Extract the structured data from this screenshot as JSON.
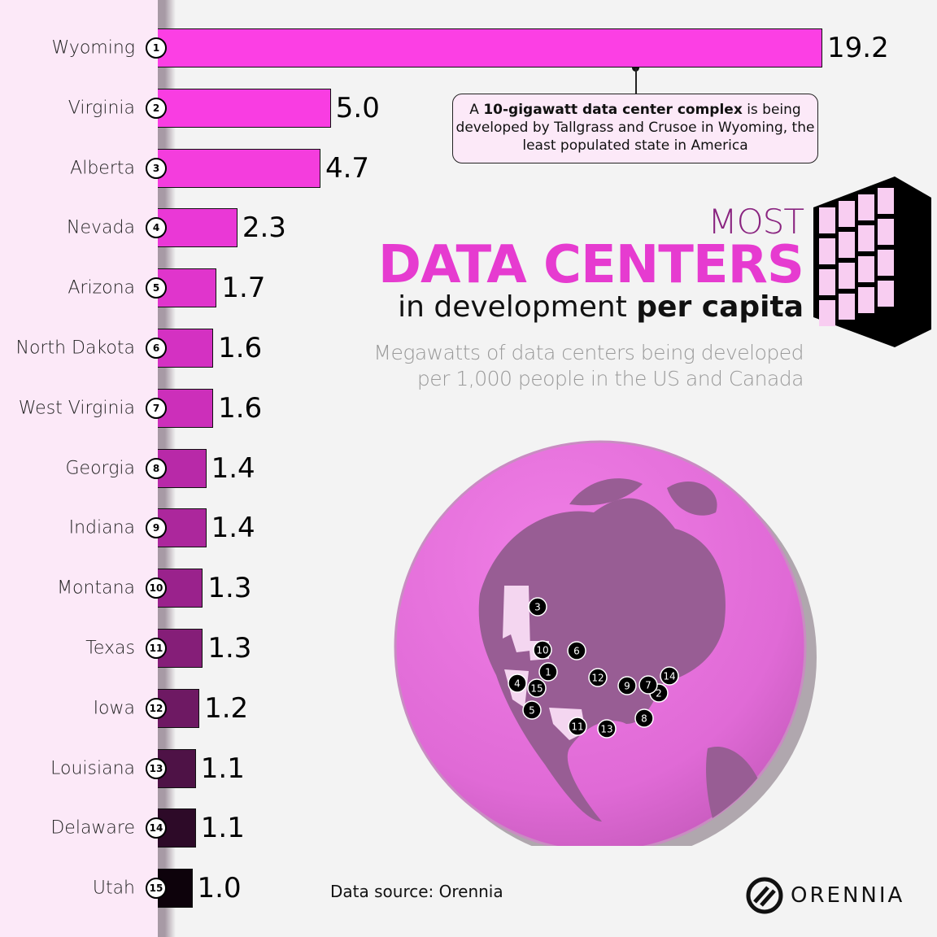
{
  "title": {
    "line1": "MOST",
    "line2": "DATA CENTERS",
    "line3_regular": "in development",
    "line3_bold": "per capita"
  },
  "subtitle": {
    "line1": "Megawatts of data centers being developed",
    "line2": "per 1,000 people in the US and Canada"
  },
  "callout": {
    "prefix": "A ",
    "bold": "10-gigawatt data center complex",
    "rest": " is being developed by Tallgrass and Crusoe in Wyoming, the least populated state in America"
  },
  "source": "Data source: Orennia",
  "logo": "ORENNIA",
  "colors": {
    "accent": "#e63bd0",
    "panel": "#fce9f8",
    "background": "#f3f3f3"
  },
  "chart_data": {
    "type": "bar",
    "orientation": "horizontal",
    "categories": [
      "Wyoming",
      "Virginia",
      "Alberta",
      "Nevada",
      "Arizona",
      "North Dakota",
      "West Virginia",
      "Georgia",
      "Indiana",
      "Montana",
      "Texas",
      "Iowa",
      "Louisiana",
      "Delaware",
      "Utah"
    ],
    "ranks": [
      "1",
      "2",
      "3",
      "4",
      "5",
      "6",
      "7",
      "8",
      "9",
      "10",
      "11",
      "12",
      "13",
      "14",
      "15"
    ],
    "values": [
      19.2,
      5.0,
      4.7,
      2.3,
      1.7,
      1.6,
      1.6,
      1.4,
      1.4,
      1.3,
      1.3,
      1.2,
      1.1,
      1.1,
      1.0
    ],
    "value_labels": [
      "19.2",
      "5.0",
      "4.7",
      "2.3",
      "1.7",
      "1.6",
      "1.6",
      "1.4",
      "1.4",
      "1.3",
      "1.3",
      "1.2",
      "1.1",
      "1.1",
      "1.0"
    ],
    "bar_colors": [
      "#fc3fe4",
      "#f93de2",
      "#f43ddd",
      "#ea38d6",
      "#e035cc",
      "#d431c2",
      "#cc2fba",
      "#b829a8",
      "#ac279c",
      "#9a228c",
      "#851e78",
      "#6e1963",
      "#4e1246",
      "#2d0a28",
      "#0d020b"
    ],
    "xlim": [
      0,
      19.2
    ],
    "grid": false
  }
}
